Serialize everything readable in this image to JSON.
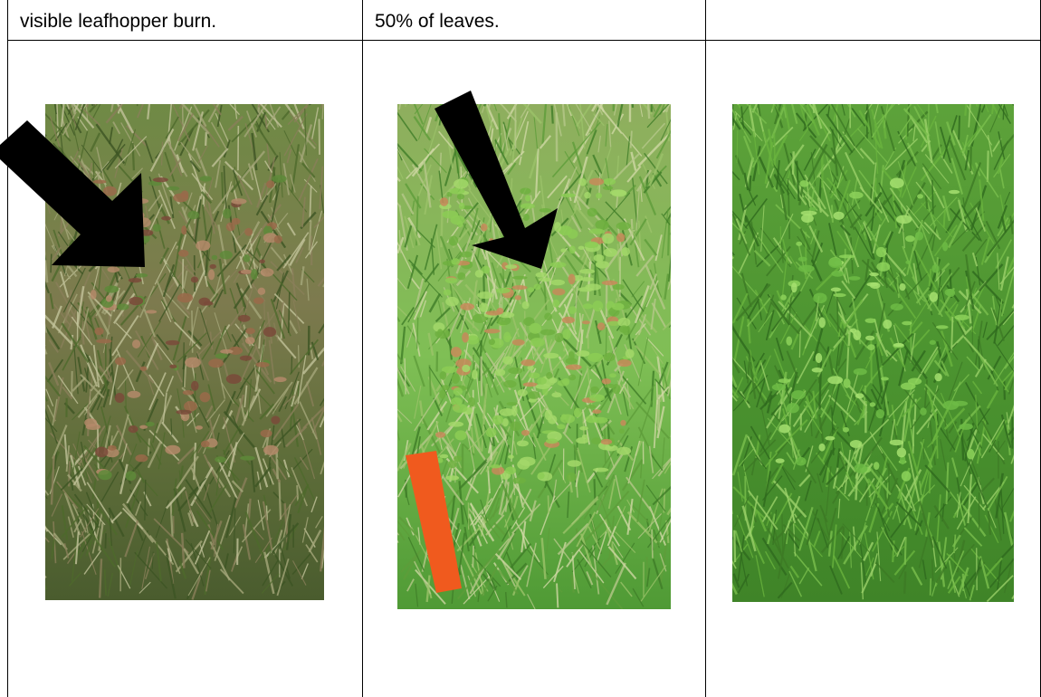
{
  "table": {
    "rows": [
      [
        "visible leafhopper burn.",
        "50% of leaves."
      ]
    ]
  }
}
